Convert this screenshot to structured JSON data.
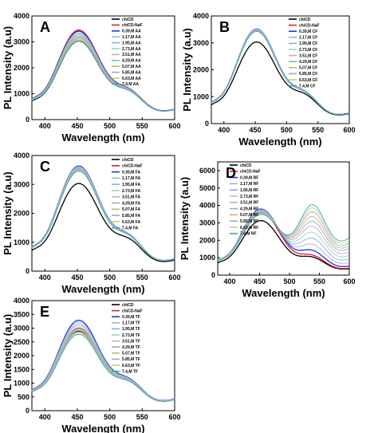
{
  "figure": {
    "ylabel": "PL Intensity (a.u)",
    "xlabel": "Wavelength (nm)"
  },
  "series_colors": [
    "#000000",
    "#d6202a",
    "#2233dd",
    "#aab0c8",
    "#7fb2e6",
    "#9cd7a7",
    "#c9a7d3",
    "#86b6b9",
    "#ccb36e",
    "#9aa9c9",
    "#c1d17a",
    "#3aa6b8"
  ],
  "chart_data": [
    {
      "type": "line",
      "panel": "A",
      "xlim": [
        380,
        600
      ],
      "ylim": [
        0,
        4000
      ],
      "xticks": [
        400,
        450,
        500,
        550,
        600
      ],
      "yticks": [
        0,
        1000,
        2000,
        3000,
        4000
      ],
      "peak_x": 452,
      "shoulder_x": 530,
      "legend": [
        "chiCD",
        "chiCD-NaF",
        "0.39,M AA",
        "1.17,M AA",
        "1.95,M AA",
        "2.73,M AA",
        "3.51,M AA",
        "4.29,M AA",
        "5.07,M AA",
        "5.85,M AA",
        "6.63,M AA",
        "7.4,M AA"
      ],
      "peaks": [
        3000,
        3420,
        3380,
        3330,
        3280,
        3240,
        3200,
        3160,
        3120,
        3080,
        3040,
        3000
      ],
      "shoulders": [
        1450,
        1520,
        1510,
        1500,
        1490,
        1480,
        1470,
        1460,
        1455,
        1450,
        1445,
        1440
      ],
      "ends": [
        380,
        400,
        395,
        392,
        390,
        388,
        386,
        384,
        382,
        380,
        378,
        376
      ],
      "starts": [
        1450,
        1600,
        1590,
        1580,
        1570,
        1560,
        1550,
        1540,
        1530,
        1520,
        1510,
        1500
      ]
    },
    {
      "type": "line",
      "panel": "B",
      "xlim": [
        380,
        600
      ],
      "ylim": [
        0,
        4000
      ],
      "xticks": [
        400,
        450,
        500,
        550,
        600
      ],
      "yticks": [
        0,
        1000,
        2000,
        3000,
        4000
      ],
      "peak_x": 452,
      "shoulder_x": 530,
      "legend": [
        "chiCD",
        "chiCD-NaF",
        "0.39,M CF",
        "1.17,M CF",
        "1.95,M CF",
        "2.73,M CF",
        "3.51,M CF",
        "4.29,M CF",
        "5.07,M CF",
        "5.85,M CF",
        "6.63,M CF",
        "7.4,M CF"
      ],
      "peaks": [
        3000,
        3460,
        3480,
        3470,
        3460,
        3450,
        3440,
        3430,
        3420,
        3410,
        3400,
        3390
      ],
      "shoulders": [
        1400,
        1500,
        1510,
        1505,
        1500,
        1495,
        1490,
        1485,
        1480,
        1475,
        1470,
        1465
      ],
      "ends": [
        370,
        390,
        392,
        391,
        390,
        389,
        388,
        387,
        386,
        385,
        384,
        383
      ],
      "starts": [
        1400,
        1550,
        1560,
        1555,
        1550,
        1545,
        1540,
        1535,
        1530,
        1525,
        1520,
        1515
      ]
    },
    {
      "type": "line",
      "panel": "C",
      "xlim": [
        380,
        600
      ],
      "ylim": [
        0,
        4000
      ],
      "xticks": [
        400,
        450,
        500,
        550,
        600
      ],
      "yticks": [
        0,
        1000,
        2000,
        3000,
        4000
      ],
      "peak_x": 452,
      "shoulder_x": 530,
      "legend": [
        "chiCD",
        "chiCD-NaF",
        "0.39,M FA",
        "1.17,M FA",
        "1.95,M FA",
        "2.73,M FA",
        "3.51,M FA",
        "4.29,M FA",
        "5.07,M FA",
        "5.85,M FA",
        "6.63,M FA",
        "7.4,M FA"
      ],
      "peaks": [
        3000,
        3500,
        3600,
        3580,
        3560,
        3540,
        3520,
        3500,
        3480,
        3460,
        3440,
        3420
      ],
      "shoulders": [
        1450,
        1600,
        1620,
        1615,
        1610,
        1605,
        1600,
        1595,
        1590,
        1585,
        1580,
        1575
      ],
      "ends": [
        380,
        420,
        425,
        423,
        421,
        419,
        417,
        415,
        413,
        411,
        409,
        407
      ],
      "starts": [
        1450,
        1620,
        1650,
        1645,
        1640,
        1635,
        1630,
        1625,
        1620,
        1615,
        1610,
        1605
      ]
    },
    {
      "type": "line",
      "panel": "D",
      "xlim": [
        380,
        600
      ],
      "ylim": [
        0,
        6500
      ],
      "xticks": [
        400,
        450,
        500,
        550,
        600
      ],
      "yticks": [
        0,
        1000,
        2000,
        3000,
        4000,
        5000,
        6000
      ],
      "peak_x": 452,
      "shoulder_x": 538,
      "legend": [
        "chiCD",
        "chiCD-NaF",
        "0.39,M RF",
        "1.17,M RF",
        "1.95,M RF",
        "2.73,M RF",
        "3.51,M RF",
        "4.29,M RF",
        "5.07,M RF",
        "5.85,M RF",
        "6.63,M RF",
        "7.4,M RF"
      ],
      "peaks": [
        3100,
        3600,
        3750,
        3700,
        3650,
        3600,
        3550,
        3500,
        3450,
        3400,
        3350,
        3300
      ],
      "shoulders": [
        1450,
        1600,
        2000,
        2500,
        3000,
        3500,
        4000,
        4400,
        4800,
        5200,
        5500,
        5750
      ],
      "ends": [
        350,
        380,
        500,
        700,
        900,
        1100,
        1300,
        1500,
        1650,
        1800,
        1950,
        2100
      ],
      "starts": [
        1400,
        1600,
        1650,
        1640,
        1630,
        1620,
        1610,
        1600,
        1590,
        1580,
        1570,
        1560
      ]
    },
    {
      "type": "line",
      "panel": "E",
      "xlim": [
        380,
        600
      ],
      "ylim": [
        0,
        4000
      ],
      "xticks": [
        400,
        450,
        500,
        550,
        600
      ],
      "yticks": [
        0,
        500,
        1000,
        1500,
        2000,
        2500,
        3000,
        3500,
        4000
      ],
      "peak_x": 452,
      "shoulder_x": 530,
      "legend": [
        "chiCD",
        "chiCD-NaF",
        "0.39,M TF",
        "1.17,M TF",
        "1.95,M TF",
        "2.73,M TF",
        "3.51,M TF",
        "4.29,M TF",
        "5.07,M TF",
        "5.85,M TF",
        "6.63,M TF",
        "7.4,M TF"
      ],
      "peaks": [
        2850,
        2950,
        3250,
        3180,
        3110,
        3050,
        2990,
        2930,
        2880,
        2830,
        2780,
        2740
      ],
      "shoulders": [
        1400,
        1420,
        1480,
        1460,
        1445,
        1430,
        1415,
        1400,
        1390,
        1380,
        1370,
        1360
      ],
      "ends": [
        400,
        410,
        430,
        425,
        420,
        416,
        412,
        408,
        404,
        400,
        396,
        392
      ],
      "starts": [
        1400,
        1420,
        1500,
        1490,
        1480,
        1470,
        1460,
        1450,
        1440,
        1430,
        1420,
        1410
      ]
    }
  ]
}
